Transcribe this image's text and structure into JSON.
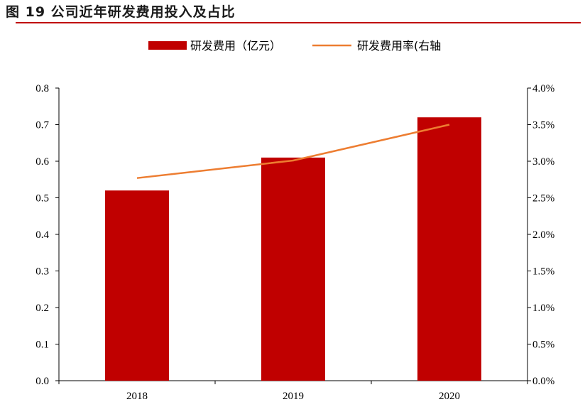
{
  "title": "图 19 公司近年研发费用投入及占比",
  "colors": {
    "bar": "#c00000",
    "line": "#ed7d31",
    "rule": "#c00000"
  },
  "chart_data": {
    "type": "bar",
    "title": "图 19 公司近年研发费用投入及占比",
    "categories": [
      "2018",
      "2019",
      "2020"
    ],
    "series": [
      {
        "name": "研发费用（亿元）",
        "type": "bar",
        "axis": "left",
        "values": [
          0.52,
          0.61,
          0.72
        ]
      },
      {
        "name": "研发费用率(右轴",
        "type": "line",
        "axis": "right",
        "values": [
          0.0277,
          0.0301,
          0.035
        ]
      }
    ],
    "ylim": [
      0,
      0.8
    ],
    "y_ticks": [
      "0.0",
      "0.1",
      "0.2",
      "0.3",
      "0.4",
      "0.5",
      "0.6",
      "0.7",
      "0.8"
    ],
    "y2lim": [
      0,
      0.04
    ],
    "y2_ticks": [
      "0.0%",
      "0.5%",
      "1.0%",
      "1.5%",
      "2.0%",
      "2.5%",
      "3.0%",
      "3.5%",
      "4.0%"
    ],
    "xlabel": "",
    "ylabel": "",
    "y2label": "",
    "grid": false,
    "legend_position": "top-center"
  }
}
